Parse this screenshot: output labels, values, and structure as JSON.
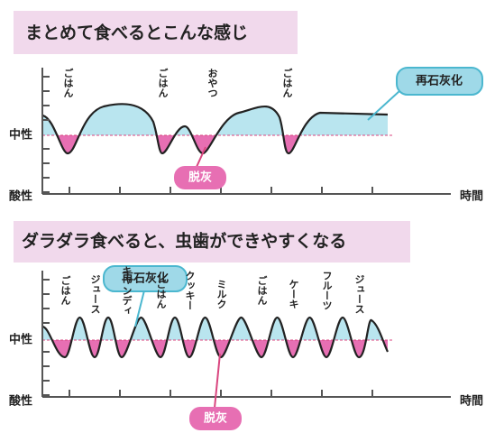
{
  "panels": [
    {
      "title": "まとめて食べるとこんな感じ",
      "foods": [
        "ごはん",
        "ごはん",
        "おやつ",
        "ごはん"
      ],
      "remineralization": "再石灰化",
      "demineralization": "脱灰",
      "neutral": "中性",
      "acidic": "酸性",
      "time": "時間"
    },
    {
      "title": "ダラダラ食べると、虫歯ができやすくなる",
      "foods": [
        "ごはん",
        "ジュース",
        "キャンディ",
        "ごはん",
        "クッキー",
        "ミルク",
        "ごはん",
        "ケーキ",
        "フルーツ",
        "ジュース"
      ],
      "remineralization": "再石灰化",
      "demineralization": "脱灰",
      "neutral": "中性",
      "acidic": "酸性",
      "time": "時間"
    }
  ]
}
